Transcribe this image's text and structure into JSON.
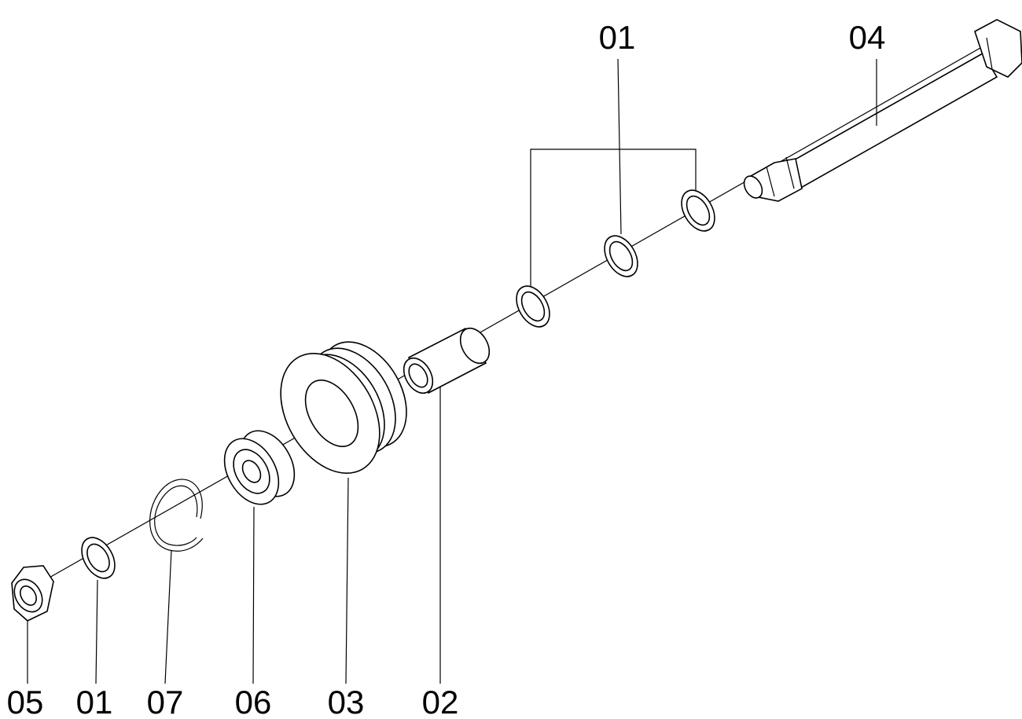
{
  "labels": [
    "01",
    "04",
    "05",
    "01",
    "07",
    "06",
    "03",
    "02"
  ]
}
